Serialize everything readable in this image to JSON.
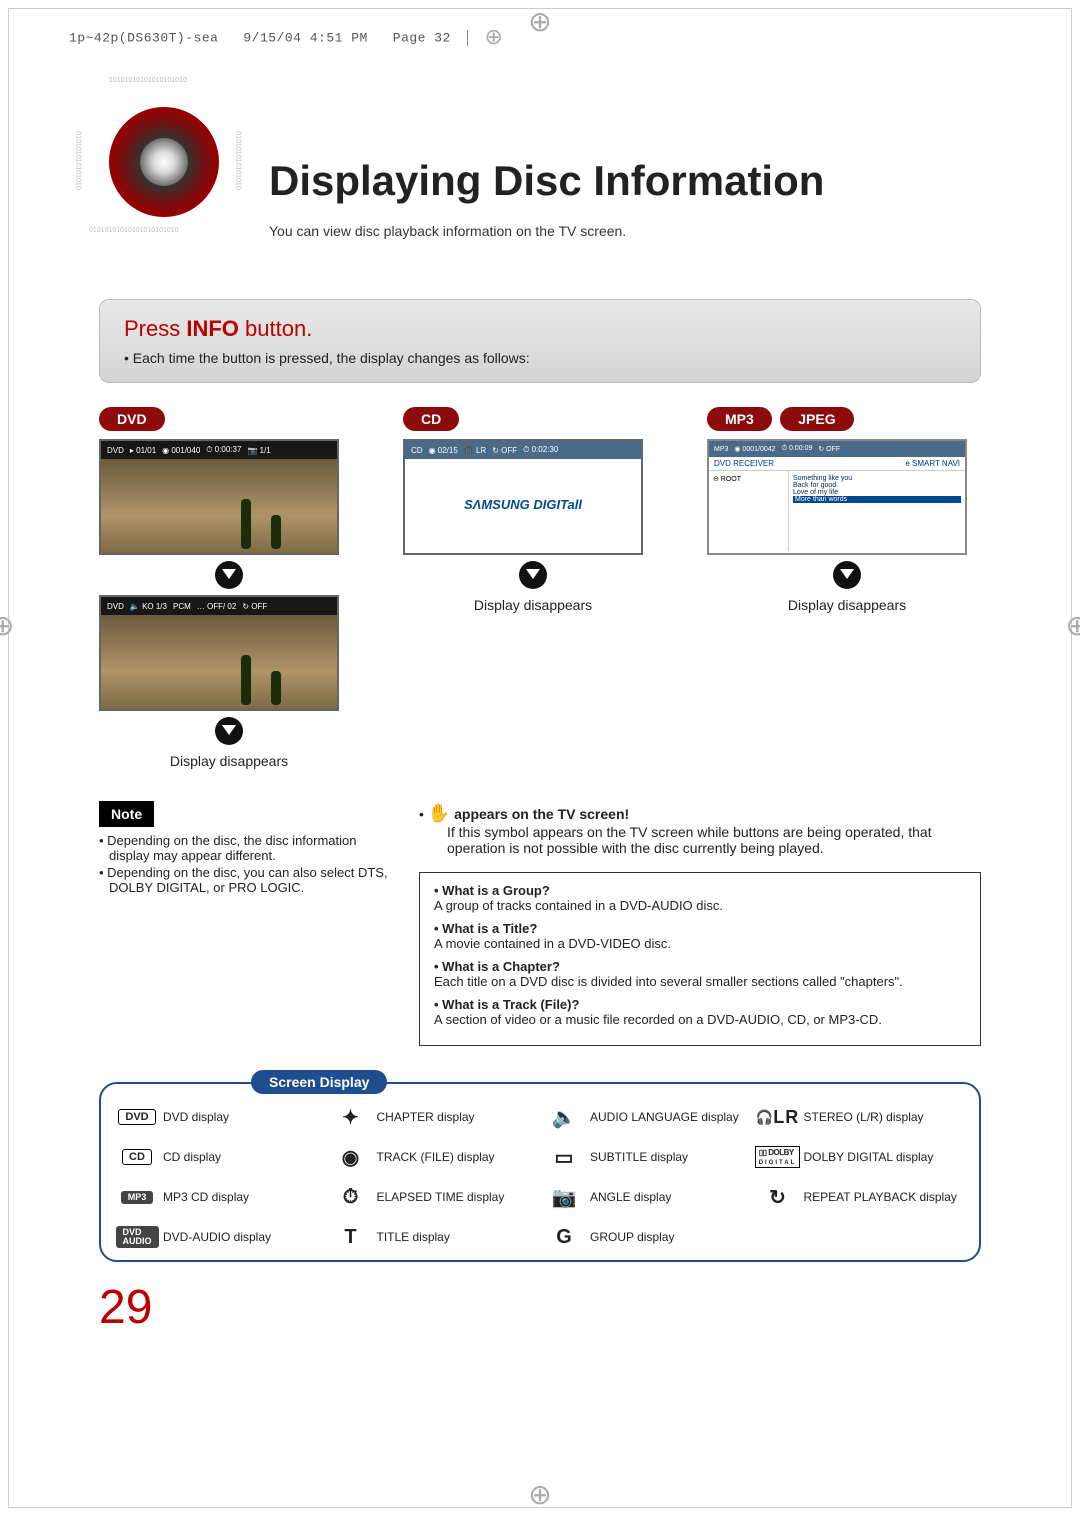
{
  "print_header": {
    "file": "1p~42p(DS630T)-sea",
    "date": "9/15/04 4:51 PM",
    "page": "Page 32"
  },
  "title": "Displaying Disc Information",
  "subtitle": "You can view disc playback information  on the TV screen.",
  "banner": {
    "headline_pre": "Press ",
    "headline_strong": "INFO",
    "headline_post": " button.",
    "sub": "Each time the button is pressed, the display changes as follows:"
  },
  "pills": {
    "dvd": "DVD",
    "cd": "CD",
    "mp3": "MP3",
    "jpeg": "JPEG"
  },
  "dvd_screen1": {
    "items": [
      "DVD",
      "▸ 01/01",
      "◉ 001/040",
      "⏱ 0:00:37",
      "📷 1/1"
    ]
  },
  "dvd_screen2": {
    "items": [
      "DVD",
      "🔈 KO 1/3",
      "PCM",
      "… OFF/ 02",
      "↻ OFF"
    ]
  },
  "cd_screen": {
    "items": [
      "CD",
      "◉ 02/15",
      "🎧 LR",
      "↻ OFF",
      "⏱ 0:02:30"
    ],
    "logo": "SΛMSUNG DIGITall"
  },
  "mp3_screen": {
    "bar": [
      "MP3",
      "◉ 0001/0042",
      "⏱ 0:00:09",
      "↻ OFF"
    ],
    "line2_left": "DVD RECEIVER",
    "line2_right": "e SMART NAVI",
    "root": "⊖ ROOT",
    "tracks": [
      "Something like you",
      "Back for good",
      "Love of my life",
      "More than words"
    ]
  },
  "display_disappears": "Display disappears",
  "hand_note": {
    "head": "appears on the TV screen!",
    "body": "If this symbol appears on the TV screen while buttons are being operated, that operation is not possible with the disc currently being played."
  },
  "note": {
    "tag": "Note",
    "items": [
      "Depending on the disc, the disc information display may appear different.",
      "Depending on the disc, you can also select DTS, DOLBY DIGITAL, or PRO LOGIC."
    ]
  },
  "definitions": [
    {
      "q": "What is a Group?",
      "a": "A group of tracks contained in a DVD-AUDIO disc."
    },
    {
      "q": "What is a Title?",
      "a": "A movie contained in a DVD-VIDEO disc."
    },
    {
      "q": "What is a Chapter?",
      "a": "Each title on a DVD disc is divided into several smaller sections called \"chapters\"."
    },
    {
      "q": "What is a Track (File)?",
      "a": "A section of video or a music file recorded on a DVD-AUDIO, CD, or MP3-CD."
    }
  ],
  "screen_display": {
    "title": "Screen Display",
    "grid": [
      {
        "icon_type": "badge",
        "icon": "DVD",
        "label": "DVD display"
      },
      {
        "icon_type": "glyph",
        "icon": "✦",
        "label": "CHAPTER display"
      },
      {
        "icon_type": "glyph",
        "icon": "🔈",
        "label": "AUDIO LANGUAGE display"
      },
      {
        "icon_type": "lr",
        "icon": "LR",
        "label": "STEREO (L/R) display"
      },
      {
        "icon_type": "badge",
        "icon": "CD",
        "label": "CD display"
      },
      {
        "icon_type": "glyph",
        "icon": "◉",
        "label": "TRACK (FILE) display"
      },
      {
        "icon_type": "glyph",
        "icon": "▭",
        "label": "SUBTITLE display"
      },
      {
        "icon_type": "dolby",
        "icon": "DOLBY",
        "label": "DOLBY DIGITAL display"
      },
      {
        "icon_type": "badge-dark",
        "icon": "MP3",
        "label": "MP3 CD display"
      },
      {
        "icon_type": "glyph",
        "icon": "⏱",
        "label": "ELAPSED TIME display"
      },
      {
        "icon_type": "glyph",
        "icon": "📷",
        "label": "ANGLE display"
      },
      {
        "icon_type": "glyph",
        "icon": "↻",
        "label": "REPEAT PLAYBACK display"
      },
      {
        "icon_type": "badge-dark",
        "icon": "DVD\nAUDIO",
        "label": "DVD-AUDIO display"
      },
      {
        "icon_type": "glyph",
        "icon": "T",
        "label": "TITLE display"
      },
      {
        "icon_type": "glyph",
        "icon": "G",
        "label": "GROUP display"
      },
      {
        "icon_type": "none",
        "icon": "",
        "label": ""
      }
    ]
  },
  "page_number": "29",
  "colors": {
    "accent_red": "#8d0b0b",
    "banner_bg_top": "#e8e8e8",
    "banner_bg_bottom": "#d4d4d4",
    "blue": "#1f4d8f",
    "pagenum": "#b00000"
  }
}
